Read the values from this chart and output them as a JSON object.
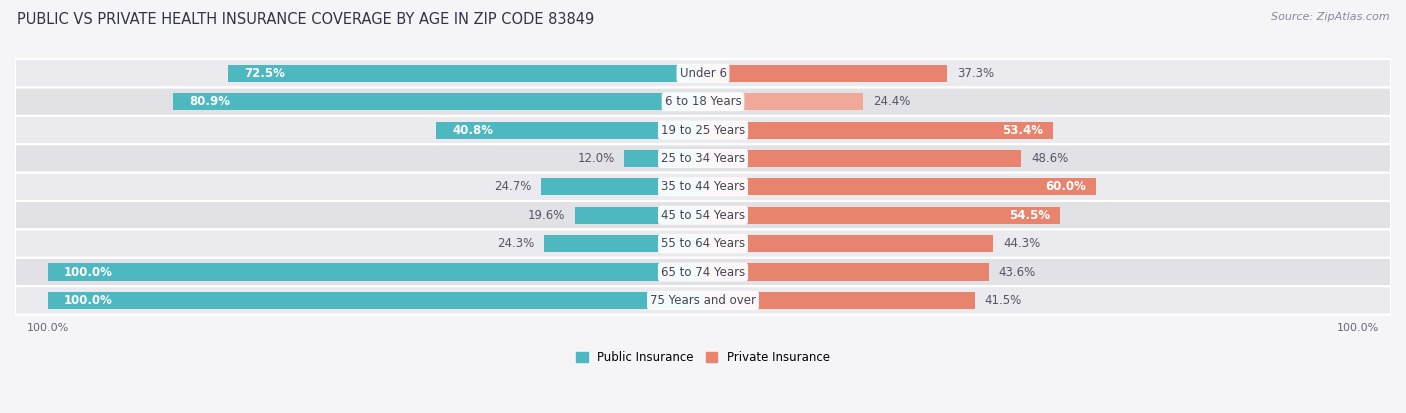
{
  "title": "PUBLIC VS PRIVATE HEALTH INSURANCE COVERAGE BY AGE IN ZIP CODE 83849",
  "source": "Source: ZipAtlas.com",
  "categories": [
    "Under 6",
    "6 to 18 Years",
    "19 to 25 Years",
    "25 to 34 Years",
    "35 to 44 Years",
    "45 to 54 Years",
    "55 to 64 Years",
    "65 to 74 Years",
    "75 Years and over"
  ],
  "public_values": [
    72.5,
    80.9,
    40.8,
    12.0,
    24.7,
    19.6,
    24.3,
    100.0,
    100.0
  ],
  "private_values": [
    37.3,
    24.4,
    53.4,
    48.6,
    60.0,
    54.5,
    44.3,
    43.6,
    41.5
  ],
  "public_color": "#4db8c0",
  "private_color": "#e8836e",
  "private_color_light": "#f0a898",
  "public_label": "Public Insurance",
  "private_label": "Private Insurance",
  "row_bg_dark": "#e2e2e6",
  "row_bg_light": "#ebebef",
  "title_fontsize": 10.5,
  "source_fontsize": 8,
  "bar_label_fontsize": 8.5,
  "category_fontsize": 8.5,
  "axis_label_fontsize": 8,
  "background_color": "#f5f5f8"
}
